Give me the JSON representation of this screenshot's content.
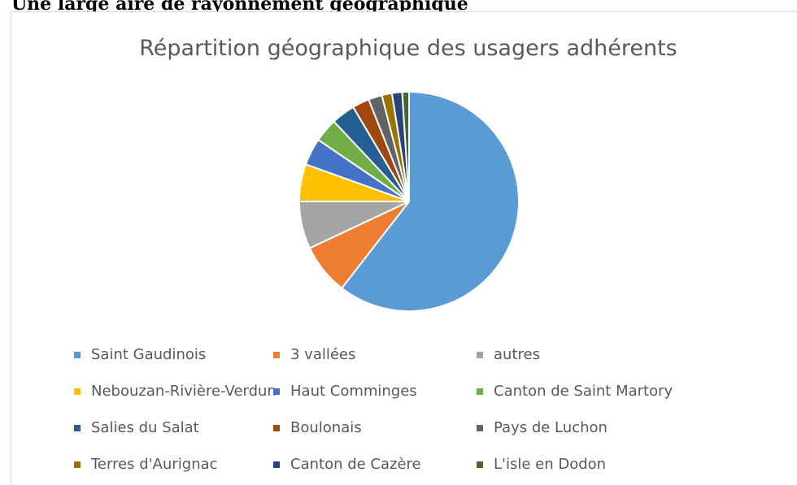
{
  "heading": "Une large aire de rayonnement géographique",
  "chart_data": {
    "type": "pie",
    "title": "Répartition géographique des usagers adhérents",
    "categories": [
      "Saint Gaudinois",
      "3 vallées",
      "autres",
      "Nebouzan-Rivière-Verdun",
      "Haut Comminges",
      "Canton de Saint Martory",
      "Salies du Salat",
      "Boulonais",
      "Pays de Luchon",
      "Terres d'Aurignac",
      "Canton de Cazère",
      "L'isle en Dodon"
    ],
    "values": [
      60.5,
      7.5,
      7,
      5.5,
      4,
      3.5,
      3.5,
      2.5,
      2,
      1.5,
      1.5,
      1
    ],
    "colors": [
      "#5b9bd5",
      "#ed7d31",
      "#a5a5a5",
      "#ffc000",
      "#4472c4",
      "#70ad47",
      "#255e91",
      "#9e480e",
      "#636363",
      "#997300",
      "#264478",
      "#43682b"
    ],
    "legend": "bottom"
  }
}
